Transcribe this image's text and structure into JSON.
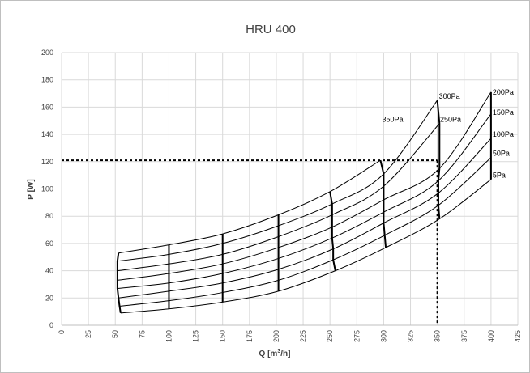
{
  "chart_data": {
    "type": "line",
    "title": "HRU 400",
    "xlabel": "Q [m³/h]",
    "ylabel": "P [W]",
    "xlim": [
      0,
      425
    ],
    "ylim": [
      0,
      200
    ],
    "x_ticks": [
      0,
      25,
      50,
      75,
      100,
      125,
      150,
      175,
      200,
      225,
      250,
      275,
      300,
      325,
      350,
      375,
      400,
      425
    ],
    "y_ticks": [
      0,
      20,
      40,
      60,
      80,
      100,
      120,
      140,
      160,
      180,
      200
    ],
    "grid": true,
    "legend": "none",
    "pressure_curves": [
      {
        "name": "5Pa",
        "x": [
          55,
          100,
          150,
          202,
          255,
          302,
          352,
          400
        ],
        "y": [
          9,
          12,
          17,
          25,
          40,
          57,
          78,
          107
        ]
      },
      {
        "name": "50Pa",
        "x": [
          54,
          100,
          150,
          202,
          253,
          301,
          351,
          400
        ],
        "y": [
          14,
          18,
          24,
          33,
          48,
          66,
          88,
          123
        ]
      },
      {
        "name": "100Pa",
        "x": [
          53,
          100,
          150,
          202,
          253,
          300,
          351,
          400
        ],
        "y": [
          20,
          25,
          31,
          41,
          56,
          75,
          97,
          137
        ]
      },
      {
        "name": "150Pa",
        "x": [
          52,
          100,
          150,
          202,
          252,
          300,
          351,
          400
        ],
        "y": [
          27,
          31,
          38,
          49,
          64,
          83,
          106,
          155
        ]
      },
      {
        "name": "200Pa",
        "x": [
          52,
          100,
          150,
          202,
          252,
          300,
          352,
          400
        ],
        "y": [
          33,
          38,
          45,
          57,
          72,
          92,
          115,
          171
        ]
      },
      {
        "name": "250Pa",
        "x": [
          52,
          100,
          150,
          202,
          252,
          300,
          352
        ],
        "y": [
          40,
          45,
          52,
          65,
          81,
          102,
          148
        ]
      },
      {
        "name": "300Pa",
        "x": [
          52,
          100,
          150,
          202,
          252,
          300,
          350
        ],
        "y": [
          47,
          52,
          60,
          73,
          89,
          111,
          165
        ]
      },
      {
        "name": "350Pa",
        "x": [
          53,
          100,
          150,
          202,
          250,
          297
        ],
        "y": [
          53,
          59,
          67,
          81,
          98,
          121
        ]
      }
    ],
    "series_labels": [
      {
        "text": "5Pa",
        "x": 400,
        "y": 110
      },
      {
        "text": "50Pa",
        "x": 400,
        "y": 126
      },
      {
        "text": "100Pa",
        "x": 400,
        "y": 140
      },
      {
        "text": "150Pa",
        "x": 400,
        "y": 156
      },
      {
        "text": "200Pa",
        "x": 400,
        "y": 171
      },
      {
        "text": "250Pa",
        "x": 351,
        "y": 151
      },
      {
        "text": "300Pa",
        "x": 350,
        "y": 168
      },
      {
        "text": "350Pa",
        "x": 297,
        "y": 151
      }
    ],
    "reference_lines": [
      {
        "from": [
          0,
          121
        ],
        "to": [
          350,
          121
        ]
      },
      {
        "from": [
          350,
          121
        ],
        "to": [
          350,
          0
        ]
      }
    ]
  }
}
